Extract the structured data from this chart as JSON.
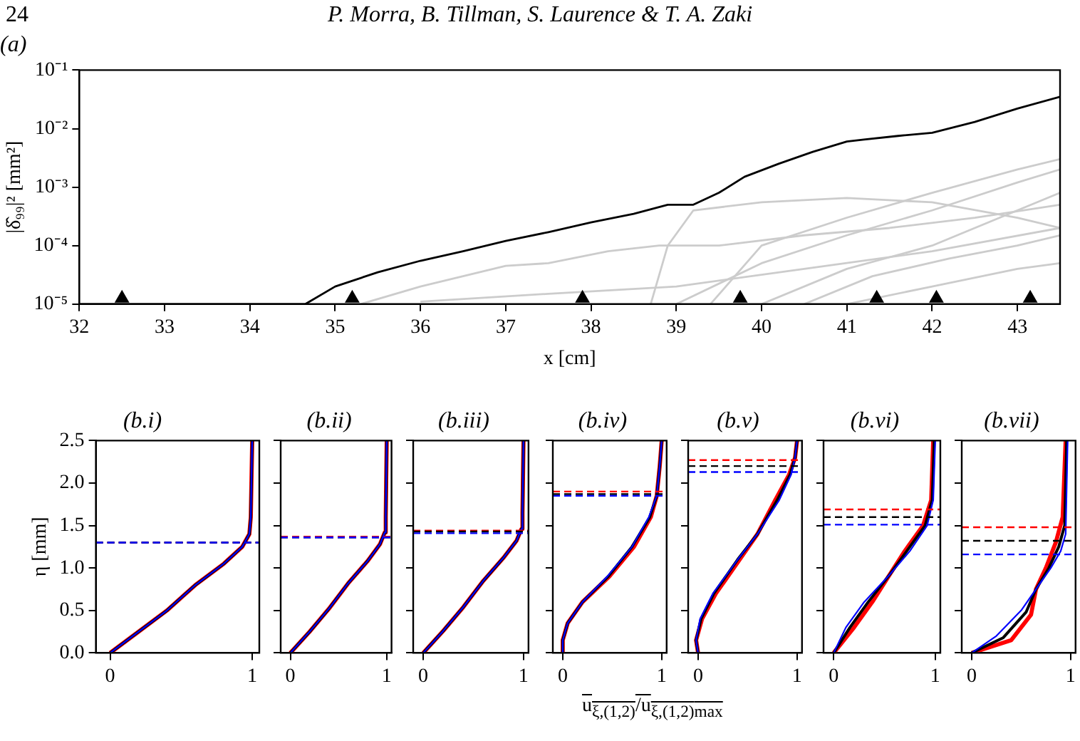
{
  "chart_data": [
    {
      "type": "line",
      "title": "(a)",
      "annotations": [
        "24",
        "P. Morra, B. Tillman, S. Laurence & T. A. Zaki"
      ],
      "xlabel": "x [cm]",
      "ylabel": "|δ̂₉₉|² [mm²]",
      "log": "y",
      "grid": false,
      "legend": false,
      "xlim": [
        32,
        43.5
      ],
      "xticks": [
        32,
        33,
        34,
        35,
        36,
        37,
        38,
        39,
        40,
        41,
        42,
        43
      ],
      "ylim": [
        1e-05,
        0.1
      ],
      "yticks": [
        {
          "value": 1e-05,
          "label": "10⁻⁵"
        },
        {
          "value": 0.0001,
          "label": "10⁻⁴"
        },
        {
          "value": 0.001,
          "label": "10⁻³"
        },
        {
          "value": 0.01,
          "label": "10⁻²"
        },
        {
          "value": 0.1,
          "label": "10⁻¹"
        }
      ],
      "series": [
        {
          "color": "#cccccc",
          "x": [
            35.3,
            36,
            37,
            37.5,
            38.2,
            38.8,
            39.5,
            40.5,
            41.5,
            42.5,
            43.5
          ],
          "values": [
            1e-05,
            2e-05,
            4.5e-05,
            5e-05,
            8e-05,
            0.0001,
            0.0001,
            0.00015,
            0.0002,
            0.0003,
            0.0005
          ]
        },
        {
          "color": "#cccccc",
          "x": [
            38.7,
            38.9,
            39.2,
            40,
            41,
            42,
            43,
            43.5
          ],
          "values": [
            1e-05,
            0.0001,
            0.0004,
            0.00055,
            0.00065,
            0.00055,
            0.0003,
            0.0002
          ]
        },
        {
          "color": "#cccccc",
          "x": [
            39.4,
            40,
            41,
            42,
            43,
            43.5
          ],
          "values": [
            1e-05,
            0.0001,
            0.0003,
            0.0008,
            0.002,
            0.003
          ]
        },
        {
          "color": "#cccccc",
          "x": [
            39,
            40,
            41,
            42,
            43,
            43.5
          ],
          "values": [
            1e-05,
            5e-05,
            0.00015,
            0.0004,
            0.0012,
            0.002
          ]
        },
        {
          "color": "#cccccc",
          "x": [
            40,
            41,
            42,
            43,
            43.5
          ],
          "values": [
            1e-05,
            4e-05,
            0.0001,
            0.0004,
            0.0008
          ]
        },
        {
          "color": "#cccccc",
          "x": [
            36,
            37.5,
            39,
            40.5,
            42,
            43.5
          ],
          "values": [
            1.1e-05,
            1.5e-05,
            2e-05,
            4e-05,
            8e-05,
            0.0002
          ]
        },
        {
          "color": "#cccccc",
          "x": [
            40.5,
            41.3,
            42.2,
            43,
            43.5
          ],
          "values": [
            1e-05,
            3e-05,
            6e-05,
            0.0001,
            0.00015
          ]
        },
        {
          "color": "#cccccc",
          "x": [
            41,
            42,
            43,
            43.5
          ],
          "values": [
            1e-05,
            2e-05,
            4e-05,
            5e-05
          ]
        },
        {
          "color": "#000000",
          "x": [
            32,
            34.65,
            35,
            35.5,
            36,
            36.5,
            37,
            37.5,
            38,
            38.5,
            38.9,
            39.2,
            39.5,
            39.8,
            40.2,
            40.6,
            41,
            41.2,
            41.6,
            42,
            42.5,
            43,
            43.5
          ],
          "values": [
            1e-05,
            1e-05,
            2e-05,
            3.5e-05,
            5.5e-05,
            8e-05,
            0.00012,
            0.00017,
            0.00025,
            0.00035,
            0.0005,
            0.0005,
            0.0008,
            0.0015,
            0.0025,
            0.004,
            0.006,
            0.0065,
            0.0075,
            0.0085,
            0.013,
            0.022,
            0.035
          ]
        },
        {
          "type": "scatter",
          "marker": "triangle",
          "color": "#000000",
          "x": [
            32.5,
            35.2,
            37.9,
            39.75,
            41.35,
            42.05,
            43.15
          ],
          "values": [
            1.25e-05,
            1.25e-05,
            1.25e-05,
            1.25e-05,
            1.25e-05,
            1.25e-05,
            1.25e-05
          ]
        }
      ]
    },
    {
      "type": "line",
      "title": "(b.i)",
      "ylabel": "η [mm]",
      "grid": false,
      "legend": false,
      "xlim": [
        -0.1,
        1.05
      ],
      "xticks": [
        0,
        1
      ],
      "ylim": [
        0,
        2.5
      ],
      "yticks": [
        {
          "value": 0,
          "label": "0.0"
        },
        {
          "value": 0.5,
          "label": "0.5"
        },
        {
          "value": 1,
          "label": "1.0"
        },
        {
          "value": 1.5,
          "label": "1.5"
        },
        {
          "value": 2,
          "label": "2.0"
        },
        {
          "value": 2.5,
          "label": "2.5"
        }
      ],
      "series": [
        {
          "color": "#ff0000",
          "x": [
            0,
            0.2,
            0.4,
            0.6,
            0.8,
            0.93,
            0.98,
            0.99,
            1.0
          ],
          "values": [
            0,
            0.25,
            0.5,
            0.8,
            1.05,
            1.25,
            1.4,
            1.6,
            2.5
          ]
        },
        {
          "color": "#000000",
          "x": [
            0,
            0.2,
            0.4,
            0.6,
            0.8,
            0.93,
            0.98,
            0.99,
            1.0
          ],
          "values": [
            0,
            0.25,
            0.5,
            0.8,
            1.05,
            1.25,
            1.4,
            1.6,
            2.5
          ]
        },
        {
          "color": "#0000ff",
          "x": [
            0,
            0.2,
            0.4,
            0.6,
            0.8,
            0.93,
            0.98,
            0.99,
            1.0
          ],
          "values": [
            0,
            0.25,
            0.5,
            0.8,
            1.05,
            1.25,
            1.4,
            1.6,
            2.5
          ]
        }
      ],
      "ref_lines": [
        {
          "axis": "y",
          "value": 1.3,
          "color": "#ff0000",
          "line_style": "dashed"
        },
        {
          "axis": "y",
          "value": 1.3,
          "color": "#000000",
          "line_style": "dashed"
        },
        {
          "axis": "y",
          "value": 1.3,
          "color": "#0000ff",
          "line_style": "dashed"
        }
      ]
    },
    {
      "type": "line",
      "title": "(b.ii)",
      "tick_labels": "x",
      "grid": false,
      "legend": false,
      "xlim": [
        -0.1,
        1.05
      ],
      "xticks": [
        0,
        1
      ],
      "ylim": [
        0,
        2.5
      ],
      "yticks": [
        0,
        0.5,
        1,
        1.5,
        2,
        2.5
      ],
      "series": [
        {
          "color": "#ff0000",
          "x": [
            0,
            0.2,
            0.4,
            0.6,
            0.8,
            0.93,
            0.98,
            0.99,
            1.0
          ],
          "values": [
            0,
            0.25,
            0.52,
            0.82,
            1.08,
            1.28,
            1.42,
            1.6,
            2.5
          ]
        },
        {
          "color": "#000000",
          "x": [
            0,
            0.2,
            0.4,
            0.6,
            0.8,
            0.93,
            0.98,
            0.99,
            1.0
          ],
          "values": [
            0,
            0.25,
            0.52,
            0.82,
            1.08,
            1.28,
            1.42,
            1.6,
            2.5
          ]
        },
        {
          "color": "#0000ff",
          "x": [
            0,
            0.2,
            0.4,
            0.6,
            0.8,
            0.93,
            0.98,
            0.99,
            1.0
          ],
          "values": [
            0,
            0.25,
            0.52,
            0.82,
            1.08,
            1.28,
            1.42,
            1.6,
            2.5
          ]
        }
      ],
      "ref_lines": [
        {
          "axis": "y",
          "value": 1.37,
          "color": "#ff0000",
          "line_style": "dashed"
        },
        {
          "axis": "y",
          "value": 1.36,
          "color": "#000000",
          "line_style": "dashed"
        },
        {
          "axis": "y",
          "value": 1.36,
          "color": "#0000ff",
          "line_style": "dashed"
        }
      ]
    },
    {
      "type": "line",
      "title": "(b.iii)",
      "tick_labels": "x",
      "grid": false,
      "legend": false,
      "xlim": [
        -0.1,
        1.05
      ],
      "xticks": [
        0,
        1
      ],
      "ylim": [
        0,
        2.5
      ],
      "yticks": [
        0,
        0.5,
        1,
        1.5,
        2,
        2.5
      ],
      "series": [
        {
          "color": "#ff0000",
          "x": [
            0,
            0.2,
            0.4,
            0.6,
            0.8,
            0.93,
            0.98,
            0.99,
            1.0
          ],
          "values": [
            0,
            0.26,
            0.54,
            0.85,
            1.12,
            1.32,
            1.46,
            1.65,
            2.5
          ]
        },
        {
          "color": "#000000",
          "x": [
            0,
            0.2,
            0.4,
            0.6,
            0.8,
            0.93,
            0.98,
            0.99,
            1.0
          ],
          "values": [
            0,
            0.26,
            0.54,
            0.85,
            1.12,
            1.32,
            1.46,
            1.65,
            2.5
          ]
        },
        {
          "color": "#0000ff",
          "x": [
            0,
            0.2,
            0.4,
            0.6,
            0.8,
            0.93,
            0.98,
            0.99,
            1.0
          ],
          "values": [
            0,
            0.26,
            0.54,
            0.85,
            1.12,
            1.32,
            1.46,
            1.65,
            2.5
          ]
        }
      ],
      "ref_lines": [
        {
          "axis": "y",
          "value": 1.44,
          "color": "#ff0000",
          "line_style": "dashed"
        },
        {
          "axis": "y",
          "value": 1.43,
          "color": "#000000",
          "line_style": "dashed"
        },
        {
          "axis": "y",
          "value": 1.41,
          "color": "#0000ff",
          "line_style": "dashed"
        }
      ]
    },
    {
      "type": "line",
      "title": "(b.iv)",
      "xlabel": "u$_{ξ,(1,2)}$/u$_{ξ,(1,2)}$$_{max}$",
      "tick_labels": "x",
      "grid": false,
      "legend": false,
      "xlim": [
        -0.1,
        1.05
      ],
      "xticks": [
        0,
        1
      ],
      "ylim": [
        0,
        2.5
      ],
      "yticks": [
        0,
        0.5,
        1,
        1.5,
        2,
        2.5
      ],
      "series": [
        {
          "color": "#ff0000",
          "x": [
            0,
            0,
            0.05,
            0.2,
            0.47,
            0.72,
            0.89,
            0.95,
            0.98,
            1.0
          ],
          "values": [
            0,
            0.15,
            0.35,
            0.6,
            0.9,
            1.25,
            1.6,
            1.85,
            2.2,
            2.5
          ]
        },
        {
          "color": "#000000",
          "x": [
            0,
            0,
            0.05,
            0.2,
            0.46,
            0.7,
            0.88,
            0.95,
            0.98,
            1.0
          ],
          "values": [
            0,
            0.15,
            0.35,
            0.6,
            0.9,
            1.25,
            1.6,
            1.85,
            2.2,
            2.5
          ]
        },
        {
          "color": "#0000ff",
          "x": [
            0,
            0,
            0.05,
            0.2,
            0.45,
            0.7,
            0.87,
            0.95,
            0.98,
            1.0
          ],
          "values": [
            0,
            0.15,
            0.35,
            0.6,
            0.9,
            1.25,
            1.6,
            1.85,
            2.2,
            2.5
          ]
        }
      ],
      "ref_lines": [
        {
          "axis": "y",
          "value": 1.9,
          "color": "#ff0000",
          "line_style": "dashed"
        },
        {
          "axis": "y",
          "value": 1.87,
          "color": "#000000",
          "line_style": "dashed"
        },
        {
          "axis": "y",
          "value": 1.85,
          "color": "#0000ff",
          "line_style": "dashed"
        }
      ]
    },
    {
      "type": "line",
      "title": "(b.v)",
      "tick_labels": "x",
      "grid": false,
      "legend": false,
      "xlim": [
        -0.1,
        1.05
      ],
      "xticks": [
        0,
        1
      ],
      "ylim": [
        0,
        2.5
      ],
      "yticks": [
        0,
        0.5,
        1,
        1.5,
        2,
        2.5
      ],
      "series": [
        {
          "color": "#ff0000",
          "x": [
            0,
            -0.02,
            0.04,
            0.18,
            0.42,
            0.6,
            0.78,
            0.92,
            0.98,
            1.0
          ],
          "values": [
            0,
            0.15,
            0.4,
            0.7,
            1.1,
            1.4,
            1.8,
            2.1,
            2.3,
            2.5
          ]
        },
        {
          "color": "#000000",
          "x": [
            0,
            -0.02,
            0.03,
            0.16,
            0.4,
            0.6,
            0.8,
            0.93,
            0.98,
            1.0
          ],
          "values": [
            0,
            0.15,
            0.4,
            0.7,
            1.1,
            1.4,
            1.8,
            2.1,
            2.3,
            2.5
          ]
        },
        {
          "color": "#0000ff",
          "x": [
            0,
            -0.02,
            0.02,
            0.15,
            0.4,
            0.6,
            0.82,
            0.94,
            0.98,
            1.0
          ],
          "values": [
            0,
            0.15,
            0.4,
            0.7,
            1.1,
            1.4,
            1.8,
            2.1,
            2.3,
            2.5
          ]
        }
      ],
      "ref_lines": [
        {
          "axis": "y",
          "value": 2.27,
          "color": "#ff0000",
          "line_style": "dashed"
        },
        {
          "axis": "y",
          "value": 2.2,
          "color": "#000000",
          "line_style": "dashed"
        },
        {
          "axis": "y",
          "value": 2.13,
          "color": "#0000ff",
          "line_style": "dashed"
        }
      ]
    },
    {
      "type": "line",
      "title": "(b.vi)",
      "tick_labels": "x",
      "grid": false,
      "legend": false,
      "xlim": [
        -0.1,
        1.05
      ],
      "xticks": [
        0,
        1
      ],
      "ylim": [
        0,
        2.5
      ],
      "yticks": [
        0,
        0.5,
        1,
        1.5,
        2,
        2.5
      ],
      "series": [
        {
          "color": "#ff0000",
          "x": [
            0,
            0.2,
            0.38,
            0.55,
            0.7,
            0.88,
            0.96,
            0.98
          ],
          "values": [
            0,
            0.3,
            0.6,
            0.92,
            1.2,
            1.5,
            1.8,
            2.5
          ]
        },
        {
          "color": "#000000",
          "x": [
            0,
            0.16,
            0.34,
            0.55,
            0.72,
            0.9,
            0.97,
            0.99
          ],
          "values": [
            0,
            0.3,
            0.6,
            0.92,
            1.2,
            1.5,
            1.8,
            2.5
          ]
        },
        {
          "color": "#0000ff",
          "x": [
            0,
            0.12,
            0.3,
            0.55,
            0.75,
            0.92,
            0.98,
            1.0
          ],
          "values": [
            0,
            0.3,
            0.6,
            0.92,
            1.2,
            1.5,
            1.8,
            2.5
          ]
        }
      ],
      "ref_lines": [
        {
          "axis": "y",
          "value": 1.69,
          "color": "#ff0000",
          "line_style": "dashed"
        },
        {
          "axis": "y",
          "value": 1.6,
          "color": "#000000",
          "line_style": "dashed"
        },
        {
          "axis": "y",
          "value": 1.51,
          "color": "#0000ff",
          "line_style": "dashed"
        }
      ]
    },
    {
      "type": "line",
      "title": "(b.vii)",
      "tick_labels": "x",
      "grid": false,
      "legend": false,
      "xlim": [
        -0.1,
        1.05
      ],
      "xticks": [
        0,
        1
      ],
      "ylim": [
        0,
        2.5
      ],
      "yticks": [
        0,
        0.5,
        1,
        1.5,
        2,
        2.5
      ],
      "series": [
        {
          "color": "#ff0000",
          "x": [
            0,
            0.4,
            0.6,
            0.65,
            0.75,
            0.85,
            0.92,
            0.95
          ],
          "values": [
            0,
            0.15,
            0.45,
            0.75,
            1.0,
            1.3,
            1.6,
            2.5
          ]
        },
        {
          "color": "#000000",
          "x": [
            0,
            0.32,
            0.55,
            0.65,
            0.78,
            0.88,
            0.94,
            0.96
          ],
          "values": [
            0,
            0.18,
            0.48,
            0.75,
            1.0,
            1.25,
            1.5,
            2.5
          ]
        },
        {
          "color": "#0000ff",
          "x": [
            0,
            0.25,
            0.5,
            0.65,
            0.8,
            0.9,
            0.95,
            0.97
          ],
          "values": [
            0,
            0.2,
            0.5,
            0.75,
            1.0,
            1.2,
            1.4,
            2.5
          ]
        }
      ],
      "ref_lines": [
        {
          "axis": "y",
          "value": 1.48,
          "color": "#ff0000",
          "line_style": "dashed"
        },
        {
          "axis": "y",
          "value": 1.32,
          "color": "#000000",
          "line_style": "dashed"
        },
        {
          "axis": "y",
          "value": 1.16,
          "color": "#0000ff",
          "line_style": "dashed"
        }
      ]
    }
  ]
}
